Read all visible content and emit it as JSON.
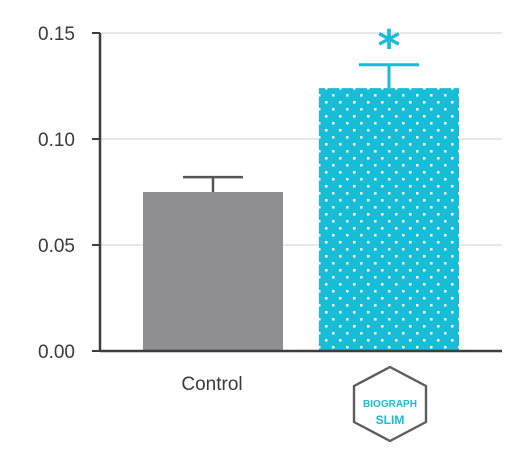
{
  "chart_data": {
    "type": "bar",
    "categories": [
      "Control",
      "BIOGRAPH SLIM"
    ],
    "values": [
      0.075,
      0.124
    ],
    "error": [
      0.007,
      0.011
    ],
    "significance": [
      "",
      "*"
    ],
    "ylim": [
      0,
      0.15
    ],
    "yticks": [
      "0.00",
      "0.05",
      "0.10",
      "0.15"
    ],
    "grid": true,
    "title": "",
    "xlabel": "",
    "ylabel": "",
    "colors": {
      "control": "#8f8f91",
      "treatment": "#17bcd6",
      "error_bar": "#555555",
      "axis": "#3d3d3d",
      "grid": "#cfcfcf"
    }
  },
  "logo": {
    "line1": "BIOGRAPH",
    "line2": "SLIM",
    "icon": "hexagon-badge-icon"
  }
}
